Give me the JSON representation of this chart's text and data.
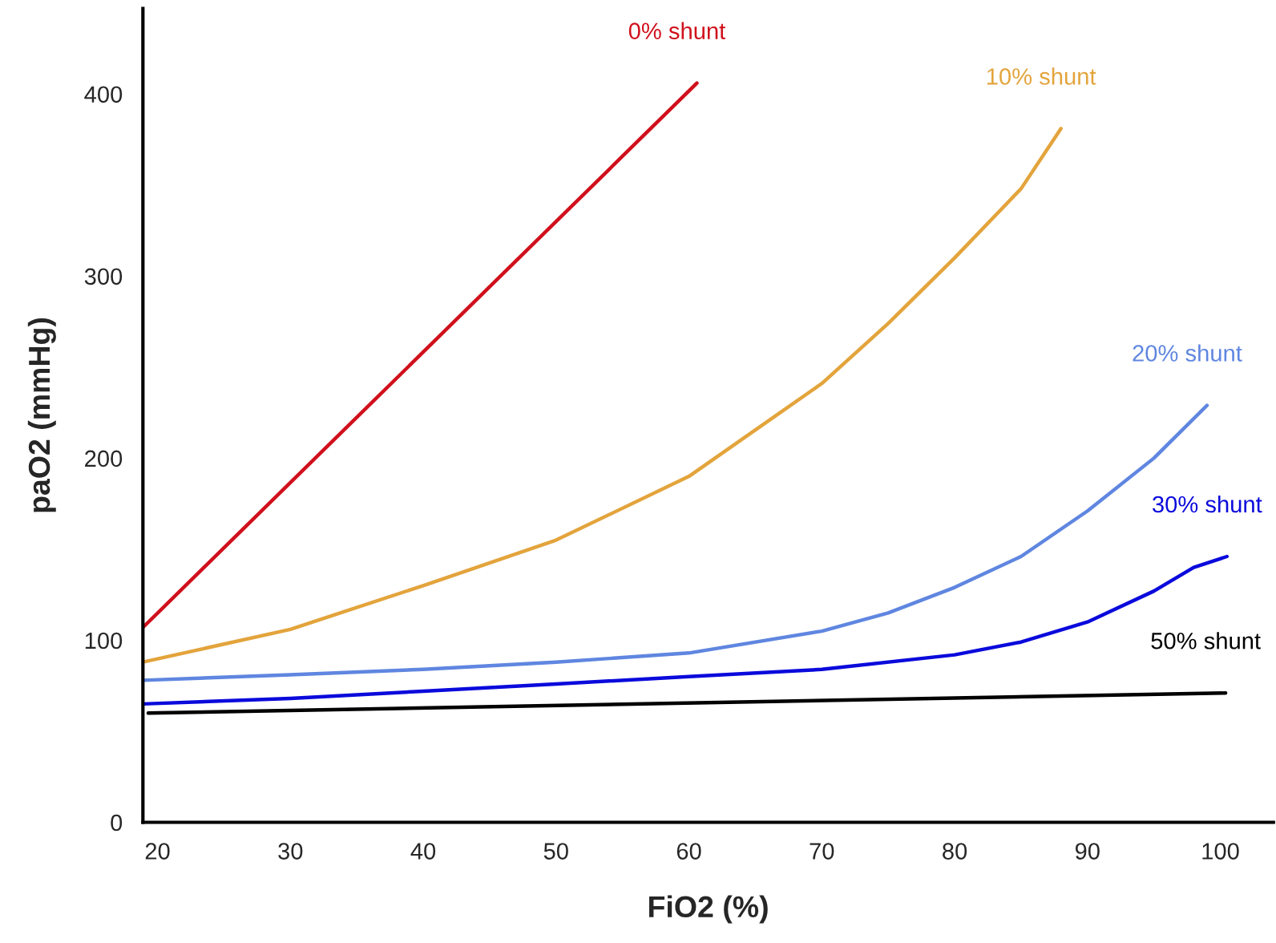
{
  "chart_data": {
    "type": "line",
    "xlabel": "FiO2 (%)",
    "ylabel": "paO2 (mmHg)",
    "xlim": [
      18.9,
      104
    ],
    "ylim": [
      0,
      447
    ],
    "xticks": [
      20,
      30,
      40,
      50,
      60,
      70,
      80,
      90,
      100
    ],
    "yticks": [
      0,
      100,
      200,
      300,
      400
    ],
    "grid": false,
    "line_style": "solid",
    "series": [
      {
        "name": "0% shunt",
        "color": "#d0101c",
        "x": [
          18.9,
          60.6
        ],
        "values": [
          107,
          406
        ]
      },
      {
        "name": "10% shunt",
        "color": "#e3a43c",
        "x": [
          18.9,
          30,
          40,
          50,
          60,
          70,
          75,
          80,
          85,
          88
        ],
        "values": [
          88,
          106,
          130,
          155,
          190,
          241,
          274,
          310,
          348,
          381
        ]
      },
      {
        "name": "20% shunt",
        "color": "#5f86e0",
        "x": [
          18.9,
          30,
          40,
          50,
          60,
          70,
          75,
          80,
          85,
          90,
          95,
          99
        ],
        "values": [
          78,
          81,
          84,
          88,
          93,
          105,
          115,
          129,
          146,
          171,
          200,
          229
        ]
      },
      {
        "name": "30% shunt",
        "color": "#0a0adc",
        "x": [
          18.9,
          30,
          40,
          50,
          60,
          70,
          80,
          85,
          90,
          95,
          98,
          100.5
        ],
        "values": [
          65,
          68,
          72,
          76,
          80,
          84,
          92,
          99,
          110,
          127,
          140,
          146
        ]
      },
      {
        "name": "50% shunt",
        "color": "#000000",
        "x": [
          19.3,
          100.4
        ],
        "values": [
          60,
          71
        ]
      }
    ]
  }
}
